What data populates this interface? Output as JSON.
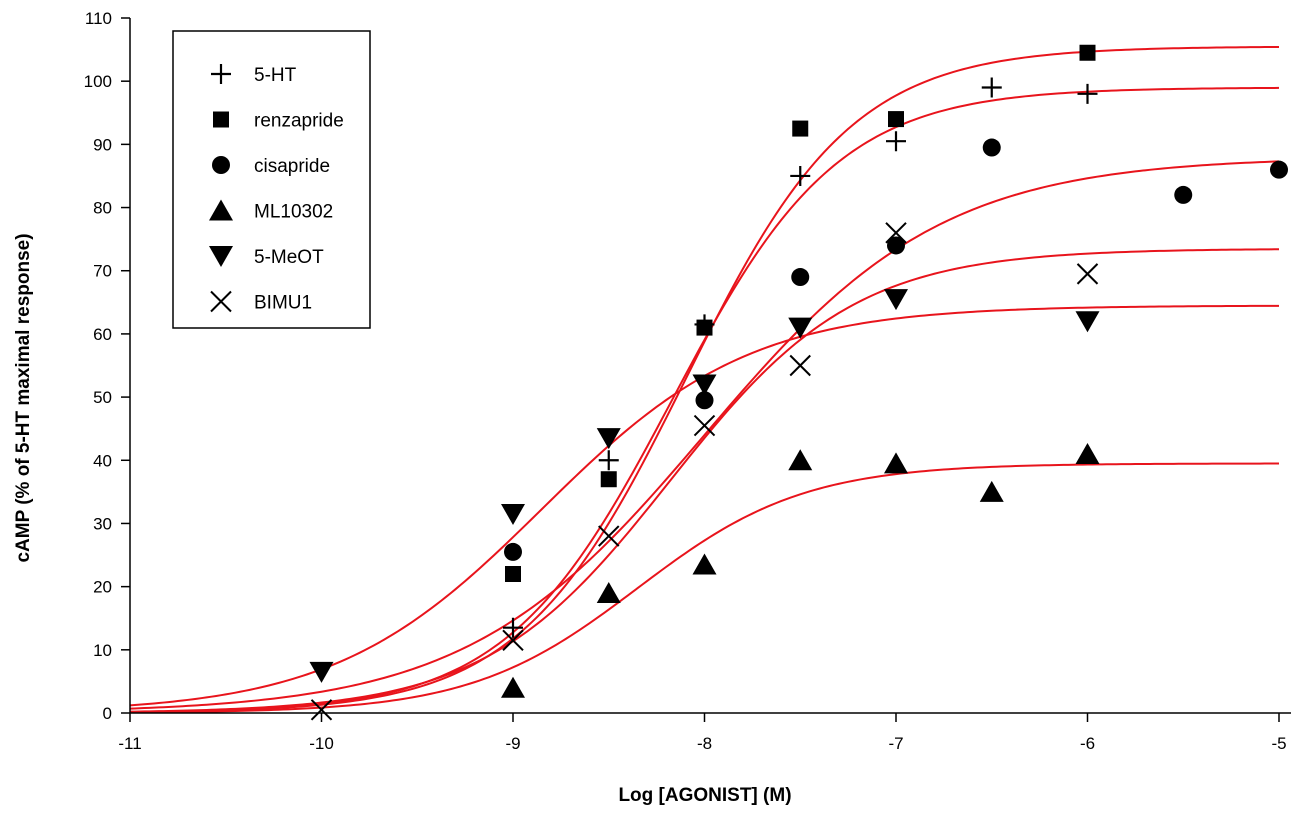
{
  "chart_data": {
    "type": "scatter",
    "xlabel": "Log [AGONIST] (M)",
    "ylabel": "cAMP (% of 5-HT maximal response)",
    "xlim": [
      -11,
      -5
    ],
    "ylim": [
      0,
      110
    ],
    "xticks": [
      "-11",
      "-10",
      "-9",
      "-8",
      "-7",
      "-6",
      "-5"
    ],
    "yticks": [
      "0",
      "10",
      "20",
      "30",
      "40",
      "50",
      "60",
      "70",
      "80",
      "90",
      "100",
      "110"
    ],
    "grid": false,
    "legend_position": "top-left",
    "curve_color": "#e8141c",
    "series": [
      {
        "name": "5-HT",
        "marker": "plus",
        "points": [
          [
            -9,
            13.5
          ],
          [
            -8.5,
            40
          ],
          [
            -8,
            61.5
          ],
          [
            -7.5,
            85
          ],
          [
            -7,
            90.5
          ],
          [
            -6.5,
            99
          ],
          [
            -6,
            98
          ]
        ],
        "fit": {
          "bottom": 0,
          "top": 99,
          "logEC50": -8.17,
          "hill": 1.0
        }
      },
      {
        "name": "renzapride",
        "marker": "square",
        "points": [
          [
            -9,
            22
          ],
          [
            -8.5,
            37
          ],
          [
            -8,
            61
          ],
          [
            -7.5,
            92.5
          ],
          [
            -7,
            94
          ],
          [
            -6,
            104.5
          ]
        ],
        "fit": {
          "bottom": 0,
          "top": 105.5,
          "logEC50": -8.1,
          "hill": 1.0
        }
      },
      {
        "name": "cisapride",
        "marker": "circle",
        "points": [
          [
            -9,
            25.5
          ],
          [
            -8,
            49.5
          ],
          [
            -7.5,
            69
          ],
          [
            -7,
            74
          ],
          [
            -6.5,
            89.5
          ],
          [
            -5.5,
            82
          ],
          [
            -5,
            86
          ]
        ],
        "fit": {
          "bottom": 0,
          "top": 88,
          "logEC50": -8.0,
          "hill": 0.7
        }
      },
      {
        "name": "ML10302",
        "marker": "triangle-up",
        "points": [
          [
            -9,
            4
          ],
          [
            -8.5,
            19
          ],
          [
            -8,
            23.5
          ],
          [
            -7.5,
            40
          ],
          [
            -7,
            39.5
          ],
          [
            -6.5,
            35
          ],
          [
            -6,
            41
          ]
        ],
        "fit": {
          "bottom": 0,
          "top": 39.5,
          "logEC50": -8.35,
          "hill": 1.0
        }
      },
      {
        "name": "5-MeOT",
        "marker": "triangle-down",
        "points": [
          [
            -10,
            6.5
          ],
          [
            -9,
            31.5
          ],
          [
            -8.5,
            43.5
          ],
          [
            -8,
            52
          ],
          [
            -7.5,
            61
          ],
          [
            -7,
            65.5
          ],
          [
            -6,
            62
          ]
        ],
        "fit": {
          "bottom": 0,
          "top": 64.5,
          "logEC50": -8.85,
          "hill": 0.8
        }
      },
      {
        "name": "BIMU1",
        "marker": "x",
        "points": [
          [
            -10,
            0.5
          ],
          [
            -9,
            11.5
          ],
          [
            -8.5,
            28
          ],
          [
            -8,
            45.5
          ],
          [
            -7.5,
            55
          ],
          [
            -7,
            76
          ],
          [
            -6,
            69.5
          ]
        ],
        "fit": {
          "bottom": 0,
          "top": 73.5,
          "logEC50": -8.18,
          "hill": 0.9
        }
      }
    ]
  }
}
